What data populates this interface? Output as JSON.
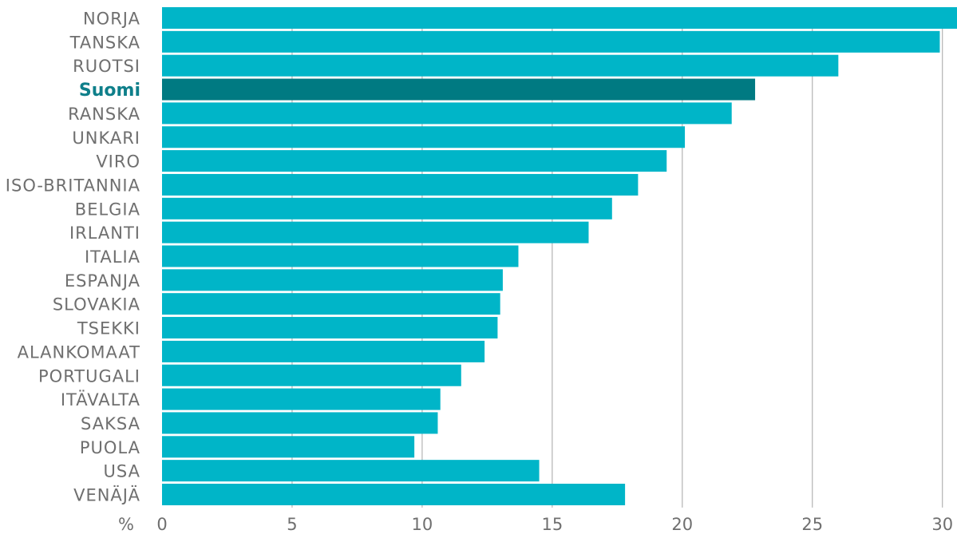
{
  "chart_data": {
    "type": "bar",
    "orientation": "horizontal",
    "categories": [
      "NORJA",
      "TANSKA",
      "RUOTSI",
      "Suomi",
      "RANSKA",
      "UNKARI",
      "VIRO",
      "ISO-BRITANNIA",
      "BELGIA",
      "IRLANTI",
      "ITALIA",
      "ESPANJA",
      "SLOVAKIA",
      "TSEKKI",
      "ALANKOMAAT",
      "PORTUGALI",
      "ITÄVALTA",
      "SAKSA",
      "PUOLA",
      "USA",
      "VENÄJÄ"
    ],
    "values": [
      30.6,
      29.9,
      26.0,
      22.8,
      21.9,
      20.1,
      19.4,
      18.3,
      17.3,
      16.4,
      13.7,
      13.1,
      13.0,
      12.9,
      12.4,
      11.5,
      10.7,
      10.6,
      9.7,
      14.5,
      17.8
    ],
    "highlight": "Suomi",
    "xlim": [
      0,
      30.5
    ],
    "xticks": [
      "0",
      "5",
      "10",
      "15",
      "20",
      "25",
      "30"
    ],
    "xunit": "%",
    "grid": "vertical",
    "colors": {
      "bar": "#00b5c8",
      "highlight": "#007a82",
      "grid": "#b3b3b3",
      "label": "#6f6f6f",
      "highlight_label": "#0e7f8a"
    }
  }
}
